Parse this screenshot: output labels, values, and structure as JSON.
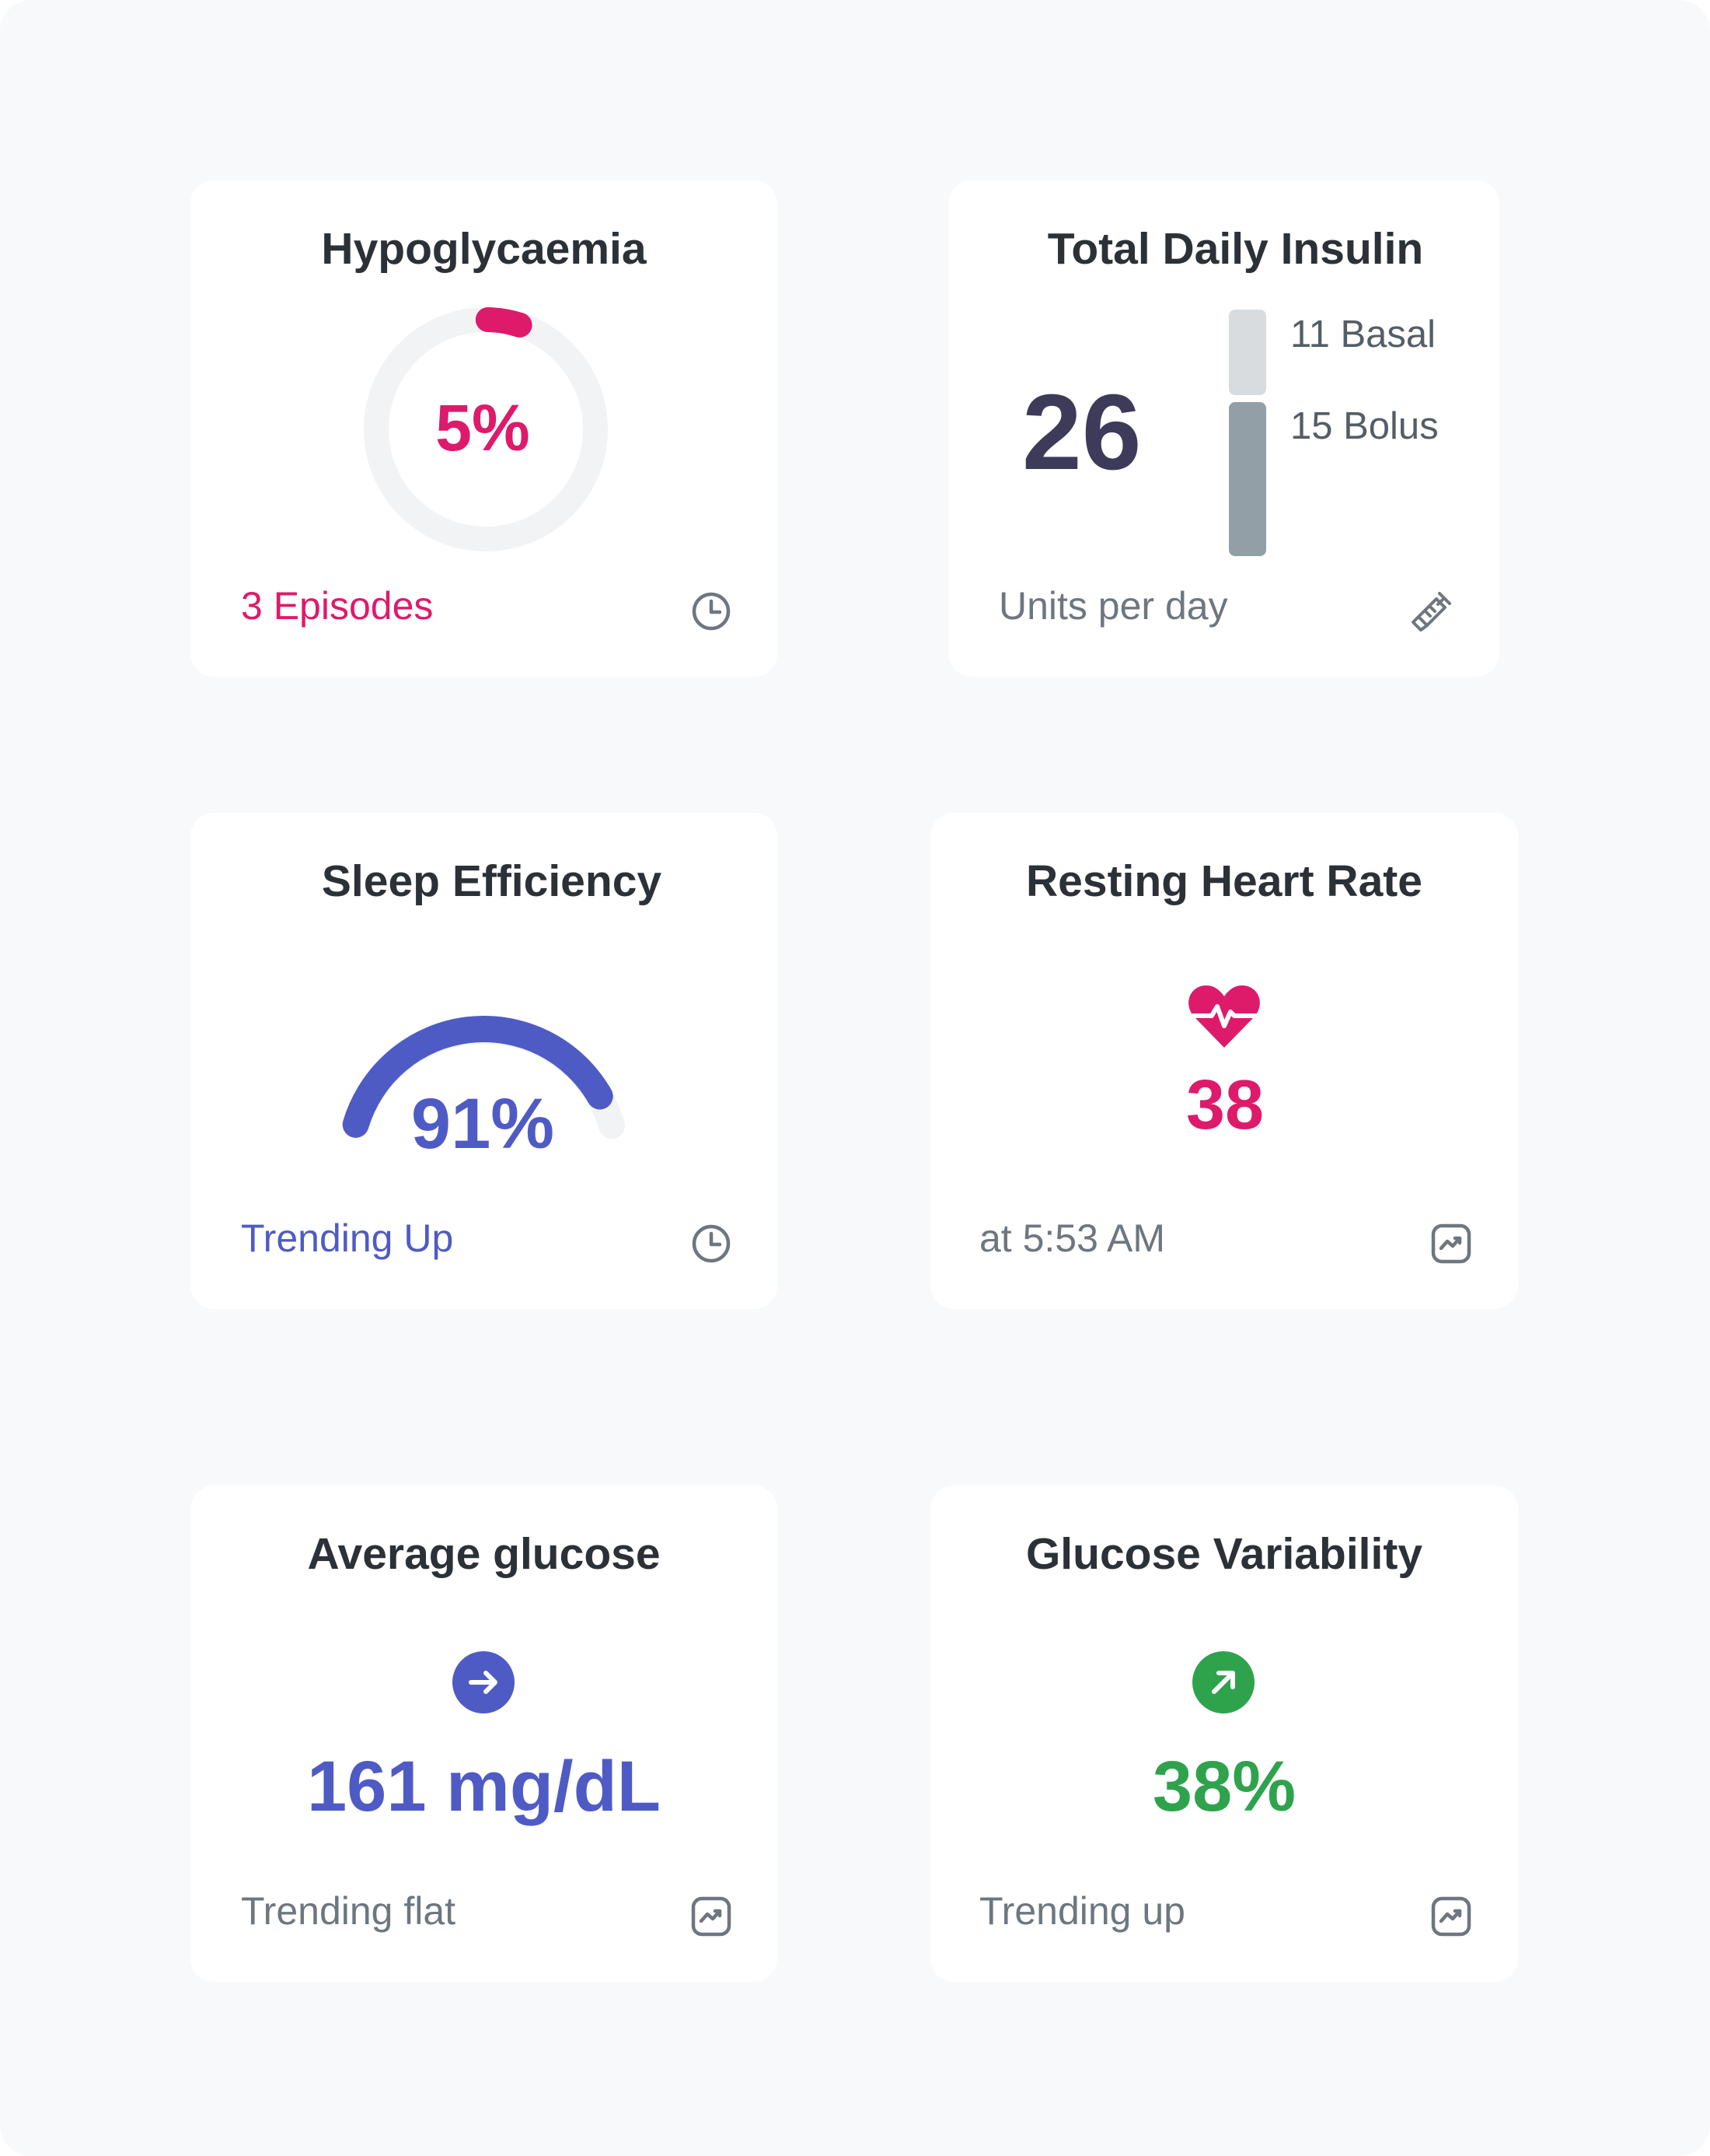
{
  "colors": {
    "pink": "#de1a6b",
    "indigo": "#4f5bc4",
    "green": "#2ea34c",
    "muted": "#6e7680",
    "track": "#f2f3f5",
    "basal_bar": "#d9dcdf",
    "bolus_bar": "#939fa6",
    "dark_value": "#3e3a5a"
  },
  "cards": {
    "hypoglycaemia": {
      "title": "Hypoglycaemia",
      "value": "5%",
      "ring_fraction": 0.05,
      "footer": "3 Episodes",
      "icon": "clock-icon"
    },
    "insulin": {
      "title": "Total Daily Insulin",
      "value": "26",
      "basal_label": "11 Basal",
      "bolus_label": "15 Bolus",
      "basal_units": 11,
      "bolus_units": 15,
      "footer": "Units per day",
      "icon": "syringe-icon"
    },
    "sleep": {
      "title": "Sleep Efficiency",
      "value": "91%",
      "gauge_fraction": 0.91,
      "footer": "Trending Up",
      "icon": "clock-icon"
    },
    "heart": {
      "title": "Resting Heart Rate",
      "value": "38",
      "footer": "at 5:53 AM",
      "icon": "chart-icon",
      "badge_icon": "heart-pulse-icon"
    },
    "avg_glucose": {
      "title": "Average glucose",
      "value": "161 mg/dL",
      "footer": "Trending flat",
      "icon": "chart-icon",
      "badge_icon": "arrow-right-icon"
    },
    "variability": {
      "title": "Glucose Variability",
      "value": "38%",
      "footer": "Trending up",
      "icon": "chart-icon",
      "badge_icon": "arrow-up-right-icon"
    }
  }
}
